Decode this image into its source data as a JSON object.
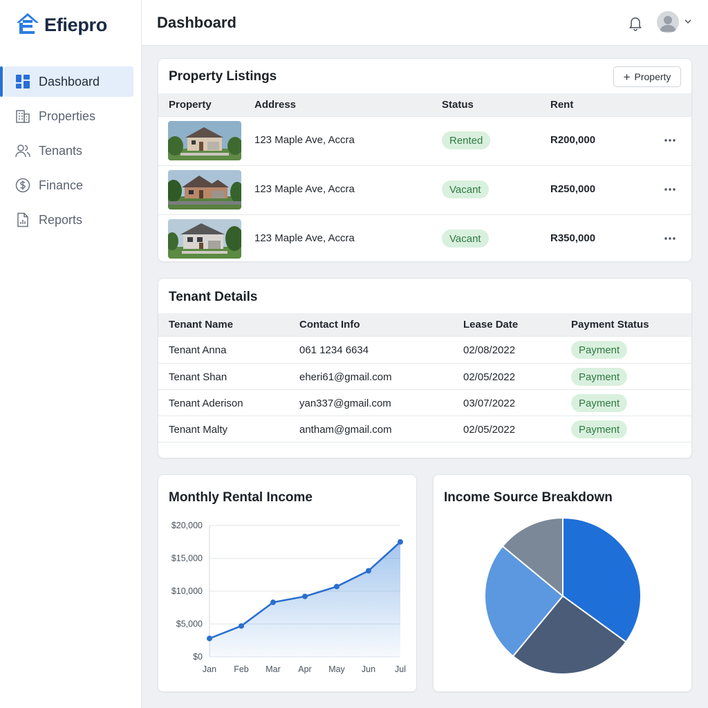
{
  "brand": {
    "name": "Efiepro"
  },
  "sidebar": {
    "items": [
      {
        "label": "Dashboard",
        "icon": "dashboard-icon",
        "active": true
      },
      {
        "label": "Properties",
        "icon": "building-icon",
        "active": false
      },
      {
        "label": "Tenants",
        "icon": "users-icon",
        "active": false
      },
      {
        "label": "Finance",
        "icon": "dollar-icon",
        "active": false
      },
      {
        "label": "Reports",
        "icon": "report-icon",
        "active": false
      }
    ]
  },
  "header": {
    "title": "Dashboard"
  },
  "properties": {
    "title": "Property Listings",
    "add_label": "Property",
    "columns": [
      "Property",
      "Address",
      "Status",
      "Rent"
    ],
    "rows": [
      {
        "address": "123 Maple Ave, Accra",
        "status": "Rented",
        "rent": "R200,000"
      },
      {
        "address": "123 Maple Ave, Accra",
        "status": "Vacant",
        "rent": "R250,000"
      },
      {
        "address": "123 Maple Ave, Accra",
        "status": "Vacant",
        "rent": "R350,000"
      }
    ]
  },
  "tenants": {
    "title": "Tenant Details",
    "columns": [
      "Tenant Name",
      "Contact Info",
      "Lease Date",
      "Payment Status"
    ],
    "rows": [
      {
        "name": "Tenant Anna",
        "contact": "061 1234 6634",
        "lease": "02/08/2022",
        "payment": "Payment"
      },
      {
        "name": "Tenant Shan",
        "contact": "eheri61@gmail.com",
        "lease": "02/05/2022",
        "payment": "Payment"
      },
      {
        "name": "Tenant Aderison",
        "contact": "yan337@gmail.com",
        "lease": "03/07/2022",
        "payment": "Payment"
      },
      {
        "name": "Tenant Malty",
        "contact": "antham@gmail.com",
        "lease": "02/05/2022",
        "payment": "Payment"
      }
    ]
  },
  "colors": {
    "accent": "#2870d8",
    "badge_bg": "#d9f0de",
    "badge_text": "#2f7a42"
  },
  "chart_data": [
    {
      "type": "area",
      "title": "Monthly Rental Income",
      "categories": [
        "Jan",
        "Feb",
        "Mar",
        "Apr",
        "May",
        "Jun",
        "Jul"
      ],
      "values": [
        2800,
        4700,
        8300,
        9200,
        10700,
        13100,
        17500
      ],
      "y_ticks": [
        "$0",
        "$5,000",
        "$10,000",
        "$15,000",
        "$20,000"
      ],
      "ylim": [
        0,
        20000
      ],
      "grid": true,
      "color": "#2a6fcf"
    },
    {
      "type": "pie",
      "title": "Income Source Breakdown",
      "values": [
        35,
        26,
        25,
        14
      ],
      "colors": [
        "#1f6fd8",
        "#4a5c78",
        "#5b98e0",
        "#7b8898"
      ]
    }
  ]
}
